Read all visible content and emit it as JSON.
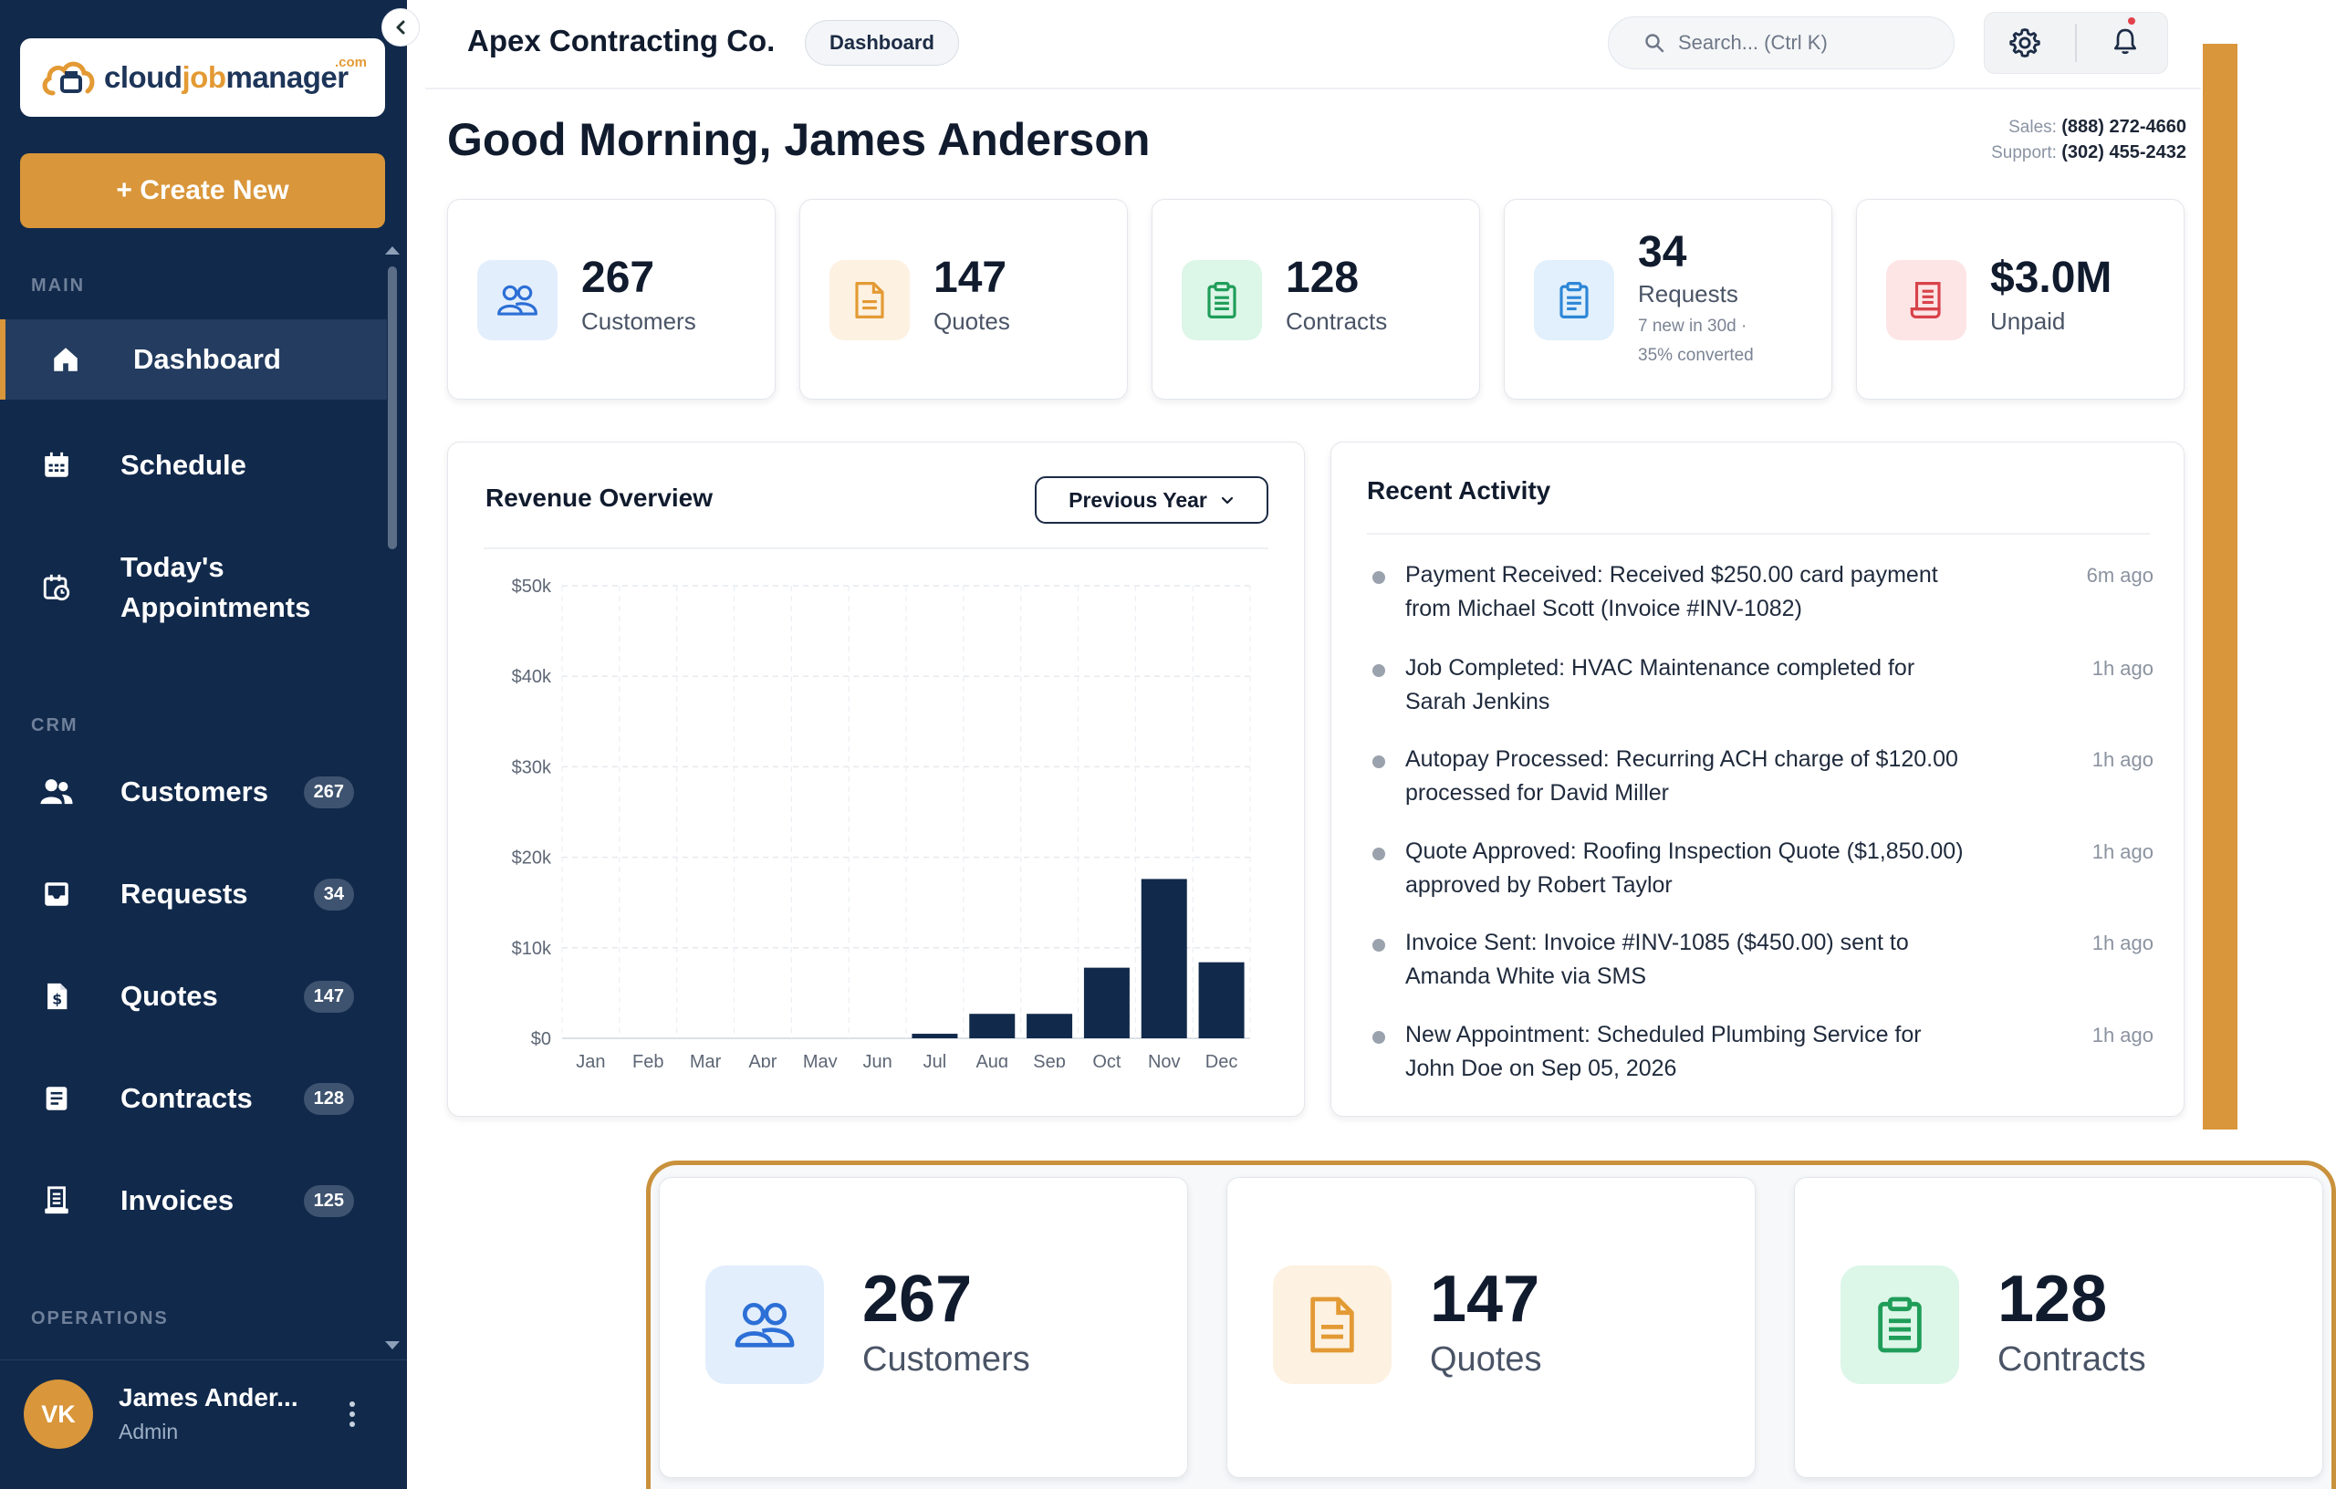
{
  "brand": {
    "logo_text_cloud": "cloud",
    "logo_text_job": "job",
    "logo_text_manager": "manager",
    "logo_com": ".com"
  },
  "sidebar": {
    "create_label": "+ Create New",
    "section_main": "MAIN",
    "section_crm": "CRM",
    "section_operations": "OPERATIONS",
    "items": [
      {
        "label": "Dashboard",
        "icon": "home-icon"
      },
      {
        "label": "Schedule",
        "icon": "calendar-icon"
      },
      {
        "label": "Today's",
        "label2": "Appointments",
        "icon": "calendar-clock-icon"
      },
      {
        "label": "Customers",
        "badge": "267",
        "icon": "users-icon"
      },
      {
        "label": "Requests",
        "badge": "34",
        "icon": "inbox-icon"
      },
      {
        "label": "Quotes",
        "badge": "147",
        "icon": "dollar-file-icon"
      },
      {
        "label": "Contracts",
        "badge": "128",
        "icon": "document-icon"
      },
      {
        "label": "Invoices",
        "badge": "125",
        "icon": "receipt-icon"
      }
    ],
    "user": {
      "initials": "VK",
      "name": "James Ander...",
      "role": "Admin"
    }
  },
  "topbar": {
    "company": "Apex Contracting Co.",
    "breadcrumb": "Dashboard",
    "search_placeholder": "Search... (Ctrl K)"
  },
  "greeting": "Good Morning, James Anderson",
  "contact": {
    "sales_label": "Sales:",
    "sales_phone": "(888) 272-4660",
    "support_label": "Support:",
    "support_phone": "(302) 455-2432"
  },
  "stats": [
    {
      "value": "267",
      "label": "Customers",
      "icon": "users-icon",
      "color": "#2c6fd6",
      "bg": "#e3eefc"
    },
    {
      "value": "147",
      "label": "Quotes",
      "icon": "document-icon",
      "color": "#e39a34",
      "bg": "#fdf1e1"
    },
    {
      "value": "128",
      "label": "Contracts",
      "icon": "clipboard-icon",
      "color": "#1f9d59",
      "bg": "#dcf6e8"
    },
    {
      "value": "34",
      "label": "Requests",
      "sub1": "7 new in 30d ·",
      "sub2": "35% converted",
      "icon": "clipboard-list-icon",
      "color": "#2c86d6",
      "bg": "#e1f0fc"
    },
    {
      "value": "$3.0M",
      "label": "Unpaid",
      "icon": "receipt-icon",
      "color": "#d8424a",
      "bg": "#fde5e6"
    }
  ],
  "revenue": {
    "title": "Revenue Overview",
    "select_value": "Previous Year"
  },
  "chart_data": {
    "type": "bar",
    "title": "Revenue Overview",
    "categories": [
      "Jan",
      "Feb",
      "Mar",
      "Apr",
      "May",
      "Jun",
      "Jul",
      "Aug",
      "Sep",
      "Oct",
      "Nov",
      "Dec"
    ],
    "values": [
      0,
      0,
      0,
      0,
      0,
      0,
      500,
      2700,
      2700,
      7800,
      17600,
      8400
    ],
    "yticks": [
      "$0",
      "$10k",
      "$20k",
      "$30k",
      "$40k",
      "$50k"
    ],
    "ylim": [
      0,
      50000
    ],
    "grid": true,
    "bar_color": "#11294b"
  },
  "activity": {
    "title": "Recent Activity",
    "items": [
      {
        "line1": "Payment Received: Received $250.00 card payment",
        "line2": "from Michael Scott (Invoice #INV-1082)",
        "time": "6m ago"
      },
      {
        "line1": "Job Completed: HVAC Maintenance completed for",
        "line2": "Sarah Jenkins",
        "time": "1h ago"
      },
      {
        "line1": "Autopay Processed: Recurring ACH charge of $120.00",
        "line2": "processed for David Miller",
        "time": "1h ago"
      },
      {
        "line1": "Quote Approved: Roofing Inspection Quote ($1,850.00)",
        "line2": "approved by Robert Taylor",
        "time": "1h ago"
      },
      {
        "line1": "Invoice Sent: Invoice #INV-1085 ($450.00) sent to",
        "line2": "Amanda White via SMS",
        "time": "1h ago"
      },
      {
        "line1": "New Appointment: Scheduled Plumbing Service for",
        "line2": "John Doe on Sep 05, 2026",
        "time": "1h ago"
      }
    ]
  },
  "zoom": [
    {
      "value": "267",
      "label": "Customers"
    },
    {
      "value": "147",
      "label": "Quotes"
    },
    {
      "value": "128",
      "label": "Contracts"
    }
  ]
}
